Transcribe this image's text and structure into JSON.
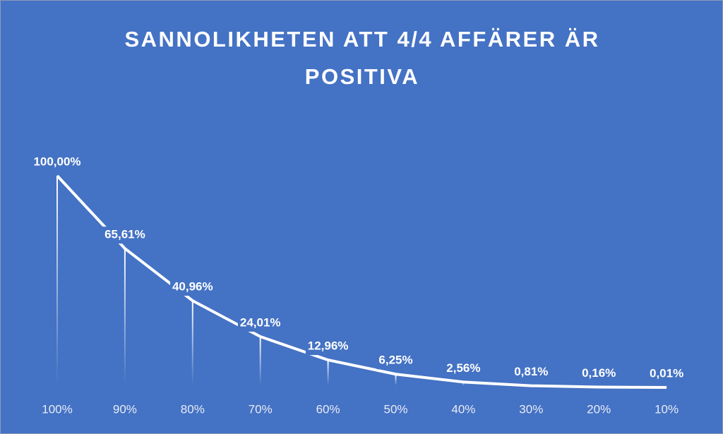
{
  "chart_data": {
    "type": "line",
    "title": "SANNOLIKHETEN ATT 4/4 AFFÄRER ÄR POSITIVA",
    "categories": [
      "100%",
      "90%",
      "80%",
      "70%",
      "60%",
      "50%",
      "40%",
      "30%",
      "20%",
      "10%"
    ],
    "values": [
      100,
      65.61,
      40.96,
      24.01,
      12.96,
      6.25,
      2.56,
      0.81,
      0.16,
      0.01
    ],
    "value_labels": [
      "100,00%",
      "65,61%",
      "40,96%",
      "24,01%",
      "12,96%",
      "6,25%",
      "2,56%",
      "0,81%",
      "0,16%",
      "0,01%"
    ],
    "color": "#ffffff",
    "drop_lines": true
  }
}
